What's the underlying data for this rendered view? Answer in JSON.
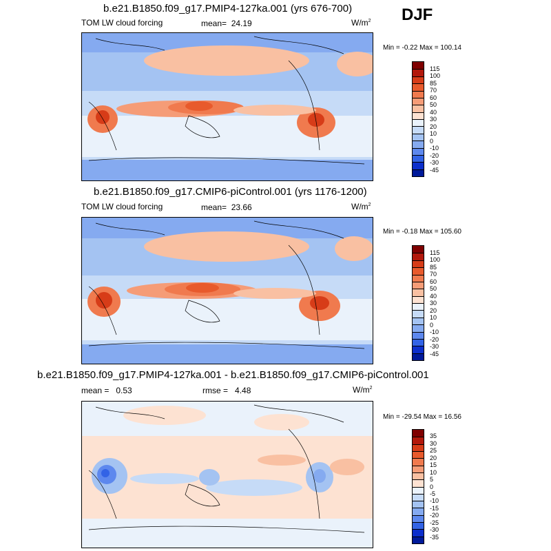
{
  "season": "DJF",
  "units": "W/m",
  "units_exp": "2",
  "panels": [
    {
      "title": "b.e21.B1850.f09_g17.PMIP4-127ka.001 (yrs 676-700)",
      "variable": "TOM LW cloud forcing",
      "mean_label": "mean=",
      "mean": "24.19",
      "minmax": "Min =  -0.22 Max = 100.14"
    },
    {
      "title": "b.e21.B1850.f09_g17.CMIP6-piControl.001 (yrs 1176-1200)",
      "variable": "TOM LW cloud forcing",
      "mean_label": "mean=",
      "mean": "23.66",
      "minmax": "Min =  -0.18 Max = 105.60"
    },
    {
      "title": "b.e21.B1850.f09_g17.PMIP4-127ka.001 - b.e21.B1850.f09_g17.CMIP6-piControl.001",
      "mean_label": "mean =",
      "mean": "0.53",
      "rmse_label": "rmse =",
      "rmse": "4.48",
      "minmax": "Min = -29.54 Max =  16.56"
    }
  ],
  "colorbar_abs": {
    "labels": [
      "115",
      "100",
      "85",
      "70",
      "60",
      "50",
      "40",
      "30",
      "20",
      "10",
      "0",
      "-10",
      "-20",
      "-30",
      "-45"
    ],
    "colors": [
      "#7f0000",
      "#b2180b",
      "#d73c18",
      "#e85a2c",
      "#f07a4e",
      "#f59c77",
      "#f9c0a2",
      "#fde2d2",
      "#eaf2fb",
      "#c6dbf7",
      "#a4c3f2",
      "#85aaf0",
      "#5d88ee",
      "#3263e6",
      "#0c2fcc",
      "#001a9a"
    ]
  },
  "colorbar_diff": {
    "labels": [
      "35",
      "30",
      "25",
      "20",
      "15",
      "10",
      "5",
      "0",
      "-5",
      "-10",
      "-15",
      "-20",
      "-25",
      "-30",
      "-35"
    ],
    "colors": [
      "#7f0000",
      "#b2180b",
      "#d73c18",
      "#e85a2c",
      "#f07a4e",
      "#f59c77",
      "#f9c0a2",
      "#fde2d2",
      "#eaf2fb",
      "#c6dbf7",
      "#a4c3f2",
      "#85aaf0",
      "#5d88ee",
      "#3263e6",
      "#0c2fcc",
      "#001a9a"
    ]
  }
}
